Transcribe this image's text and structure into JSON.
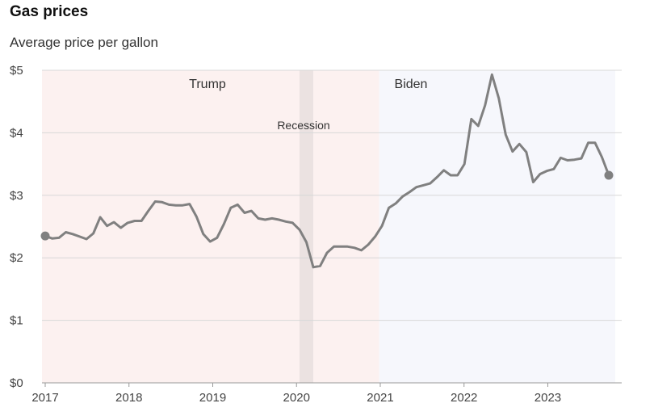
{
  "title": "Gas prices",
  "subtitle": "Average price per gallon",
  "chart_data": {
    "type": "line",
    "title": "Gas prices",
    "subtitle": "Average price per gallon",
    "x_start": "2017-01",
    "x_frequency": "monthly",
    "x_ticks": [
      "2017",
      "2018",
      "2019",
      "2020",
      "2021",
      "2022",
      "2023"
    ],
    "y_ticks": [
      "$0",
      "$1",
      "$2",
      "$3",
      "$4",
      "$5"
    ],
    "ylim": [
      0,
      5
    ],
    "grid": "horizontal",
    "line_color": "#808080",
    "values": [
      2.35,
      2.31,
      2.32,
      2.41,
      2.38,
      2.34,
      2.3,
      2.39,
      2.65,
      2.51,
      2.57,
      2.48,
      2.56,
      2.59,
      2.59,
      2.75,
      2.9,
      2.89,
      2.85,
      2.84,
      2.84,
      2.86,
      2.66,
      2.38,
      2.26,
      2.32,
      2.54,
      2.8,
      2.85,
      2.72,
      2.75,
      2.63,
      2.61,
      2.63,
      2.61,
      2.58,
      2.56,
      2.45,
      2.25,
      1.85,
      1.87,
      2.08,
      2.18,
      2.18,
      2.18,
      2.16,
      2.12,
      2.21,
      2.34,
      2.51,
      2.8,
      2.87,
      2.98,
      3.05,
      3.13,
      3.16,
      3.19,
      3.29,
      3.4,
      3.32,
      3.32,
      3.5,
      4.22,
      4.11,
      4.44,
      4.93,
      4.55,
      3.97,
      3.7,
      3.82,
      3.69,
      3.21,
      3.34,
      3.39,
      3.42,
      3.6,
      3.56,
      3.57,
      3.59,
      3.84,
      3.84,
      3.61,
      3.32
    ],
    "bands": [
      {
        "label": "Trump",
        "start": "2017-01",
        "end": "2021-01",
        "color": "#fcf1f0"
      },
      {
        "label": "Recession",
        "start": "2020-02",
        "end": "2020-04",
        "color": "#ebe2e1"
      },
      {
        "label": "Biden",
        "start": "2021-01",
        "end": "2023-11",
        "color": "#f6f7fc"
      }
    ]
  }
}
